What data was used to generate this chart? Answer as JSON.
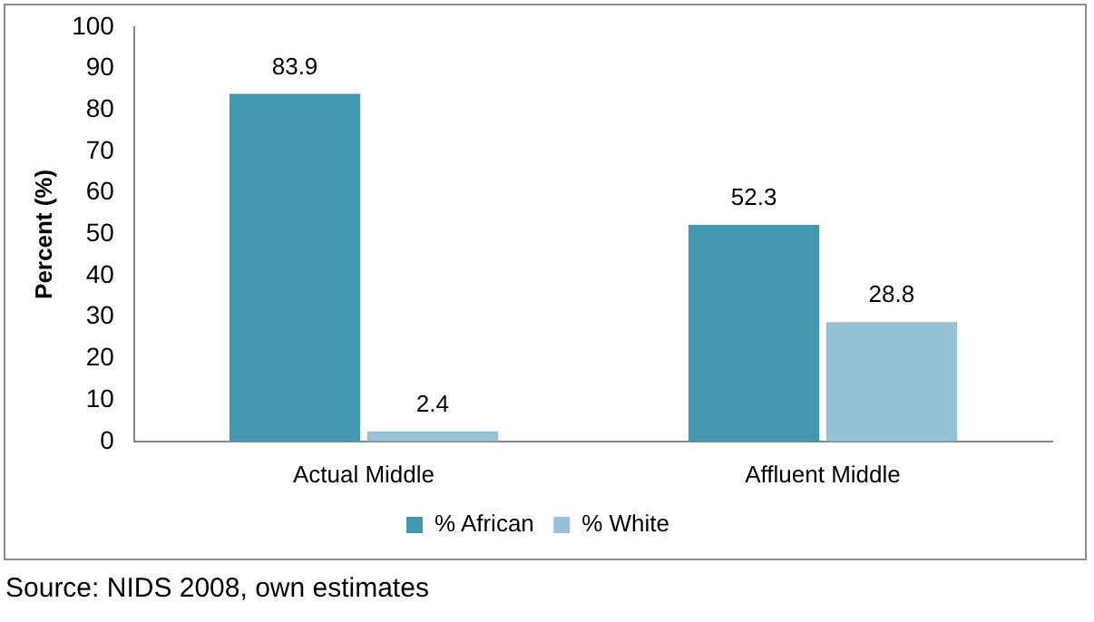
{
  "chart_data": {
    "type": "bar",
    "ylabel": "Percent (%)",
    "categories": [
      "Actual Middle",
      "Affluent Middle"
    ],
    "series": [
      {
        "name": "% African",
        "color": "#4397ae",
        "values": [
          83.9,
          52.3
        ]
      },
      {
        "name": "% White",
        "color": "#93c3d5",
        "values": [
          2.4,
          28.8
        ]
      }
    ],
    "ylim": [
      0,
      100
    ],
    "yticks": [
      0,
      10,
      20,
      30,
      40,
      50,
      60,
      70,
      80,
      90,
      100
    ],
    "grid": false,
    "legend": "bottom",
    "data_labels": true,
    "annotations": [
      "Source: NIDS 2008, own estimates"
    ]
  }
}
